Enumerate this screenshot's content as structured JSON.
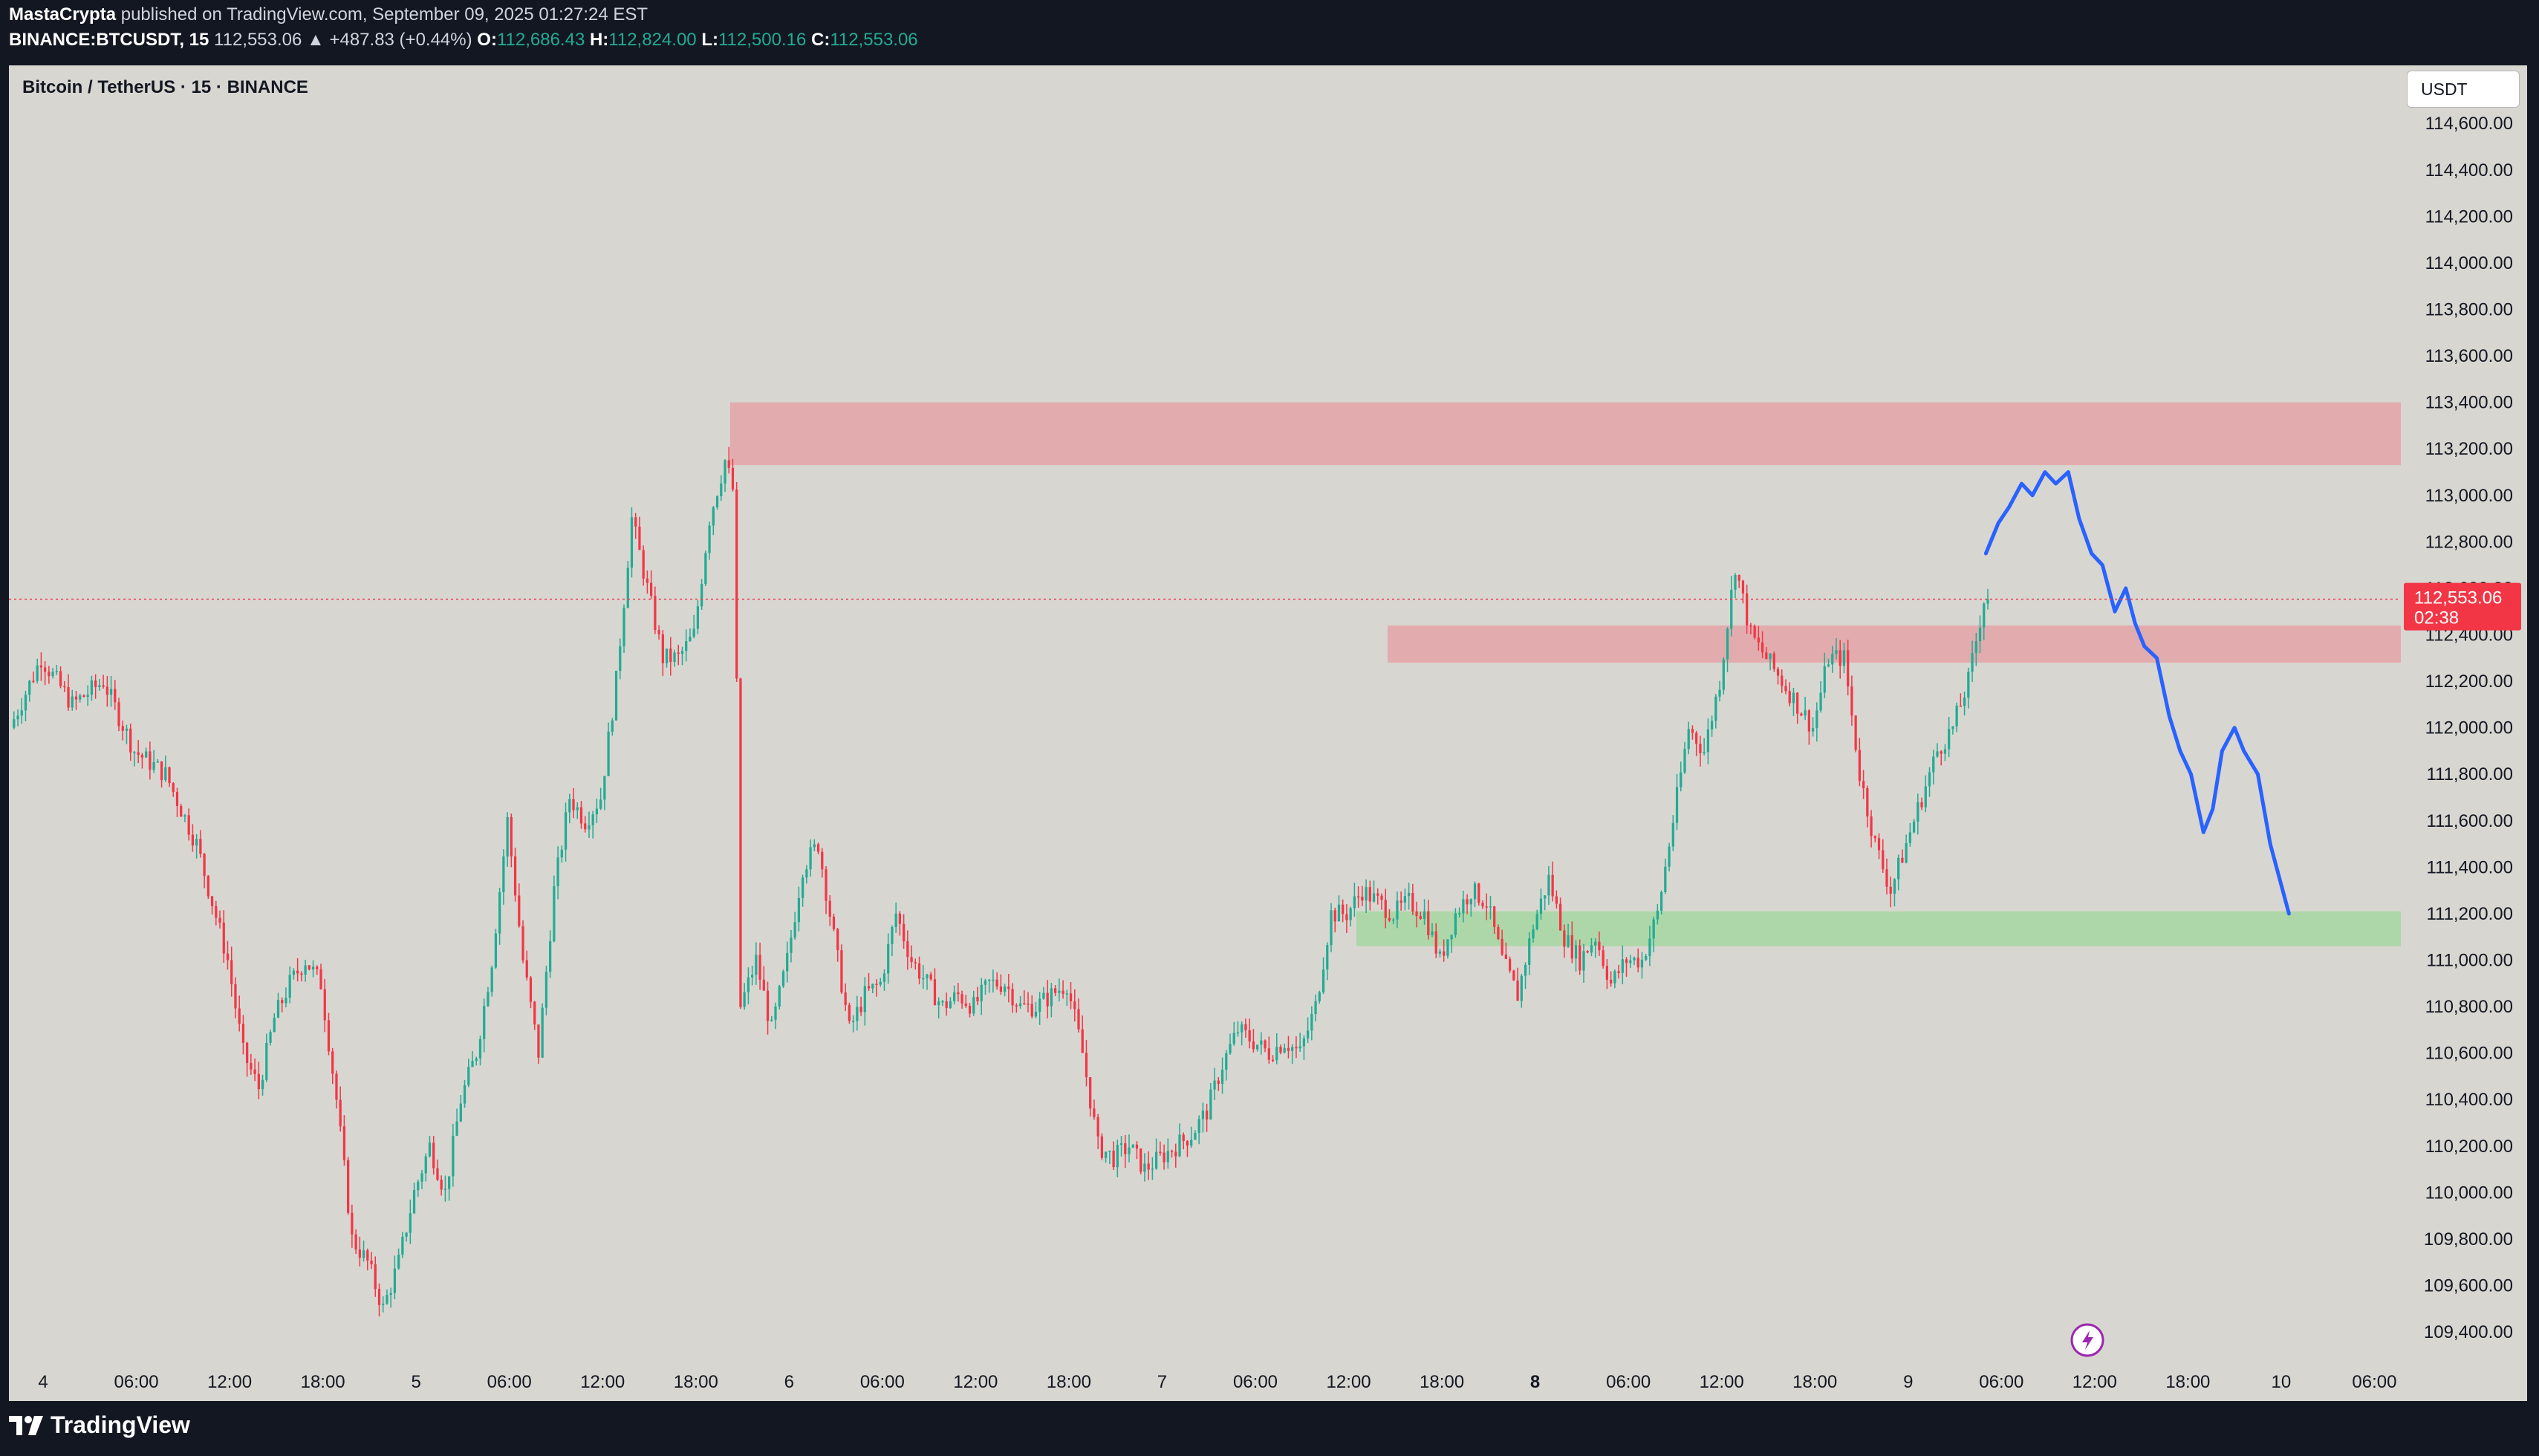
{
  "header": {
    "author": "MastaCrypta",
    "published_text": "published on TradingView.com, September 09, 2025 01:27:24 EST",
    "symbol": "BINANCE:BTCUSDT, 15",
    "last": "112,553.06",
    "change": "▲ +487.83 (+0.44%)",
    "o_label": "O:",
    "o_value": "112,686.43",
    "h_label": "H:",
    "h_value": "112,824.00",
    "l_label": "L:",
    "l_value": "112,500.16",
    "c_label": "C:",
    "c_value": "112,553.06"
  },
  "chart_title": "Bitcoin / TetherUS · 15 · BINANCE",
  "currency": "USDT",
  "price_tag": {
    "price": "112,553.06",
    "countdown": "02:38"
  },
  "footer": {
    "brand": "TradingView"
  },
  "colors": {
    "background": "#d8d6d1",
    "up": "#22ab94",
    "down": "#f23645",
    "resistance_zone": "#e3a7aa",
    "support_zone": "#a9d7a3",
    "projection": "#2962ff"
  },
  "chart_data": {
    "type": "candlestick",
    "title": "Bitcoin / TetherUS · 15 · BINANCE",
    "ylim": [
      109250,
      114850
    ],
    "ytick_labels": [
      "109,400.00",
      "109,600.00",
      "109,800.00",
      "110,000.00",
      "110,200.00",
      "110,400.00",
      "110,600.00",
      "110,800.00",
      "111,000.00",
      "111,200.00",
      "111,400.00",
      "111,600.00",
      "111,800.00",
      "112,000.00",
      "112,200.00",
      "112,400.00",
      "112,600.00",
      "112,800.00",
      "113,000.00",
      "113,200.00",
      "113,400.00",
      "113,600.00",
      "113,800.00",
      "114,000.00",
      "114,200.00",
      "114,400.00",
      "114,600.00"
    ],
    "ytick_values": [
      109400,
      109600,
      109800,
      110000,
      110200,
      110400,
      110600,
      110800,
      111000,
      111200,
      111400,
      111600,
      111800,
      112000,
      112200,
      112400,
      112600,
      112800,
      113000,
      113200,
      113400,
      113600,
      113800,
      114000,
      114200,
      114400,
      114600
    ],
    "xtick_labels": [
      "4",
      "06:00",
      "12:00",
      "18:00",
      "5",
      "06:00",
      "12:00",
      "18:00",
      "6",
      "06:00",
      "12:00",
      "18:00",
      "7",
      "06:00",
      "12:00",
      "18:00",
      "8",
      "06:00",
      "12:00",
      "18:00",
      "9",
      "06:00",
      "12:00",
      "18:00",
      "10",
      "06:00"
    ],
    "xtick_hours": [
      0,
      6,
      12,
      18,
      24,
      30,
      36,
      42,
      48,
      54,
      60,
      66,
      72,
      78,
      84,
      90,
      96,
      102,
      108,
      114,
      120,
      126,
      132,
      138,
      144,
      150
    ],
    "x_unit": "hours since Sep 4 00:00",
    "x_range_hours": [
      -2.2,
      151.7
    ],
    "last_price": 112553.06,
    "price_path": [
      [
        -2.0,
        112000
      ],
      [
        0,
        112300
      ],
      [
        2,
        112100
      ],
      [
        4,
        112200
      ],
      [
        6,
        111900
      ],
      [
        8,
        111800
      ],
      [
        10,
        111500
      ],
      [
        12,
        111000
      ],
      [
        13,
        110600
      ],
      [
        14,
        110450
      ],
      [
        15,
        110750
      ],
      [
        16,
        110900
      ],
      [
        17,
        111000
      ],
      [
        18,
        110900
      ],
      [
        19,
        110400
      ],
      [
        20,
        109800
      ],
      [
        21,
        109700
      ],
      [
        22,
        109500
      ],
      [
        23,
        109700
      ],
      [
        24,
        110000
      ],
      [
        25,
        110200
      ],
      [
        26,
        110000
      ],
      [
        27,
        110400
      ],
      [
        28,
        110600
      ],
      [
        29,
        111000
      ],
      [
        30,
        111600
      ],
      [
        31,
        111000
      ],
      [
        32,
        110600
      ],
      [
        33,
        111300
      ],
      [
        34,
        111700
      ],
      [
        35,
        111600
      ],
      [
        36,
        111700
      ],
      [
        37,
        112200
      ],
      [
        38,
        112900
      ],
      [
        39,
        112600
      ],
      [
        40,
        112300
      ],
      [
        41,
        112300
      ],
      [
        42,
        112400
      ],
      [
        43,
        112900
      ],
      [
        44,
        113150
      ],
      [
        44.6,
        113000
      ],
      [
        45,
        110800
      ],
      [
        46,
        111000
      ],
      [
        47,
        110700
      ],
      [
        48,
        111000
      ],
      [
        49,
        111400
      ],
      [
        50,
        111500
      ],
      [
        51,
        111100
      ],
      [
        52,
        110700
      ],
      [
        53,
        110850
      ],
      [
        54,
        110900
      ],
      [
        55,
        111200
      ],
      [
        56,
        111000
      ],
      [
        57,
        110900
      ],
      [
        58,
        110800
      ],
      [
        59,
        110850
      ],
      [
        60,
        110800
      ],
      [
        61,
        110900
      ],
      [
        62,
        110900
      ],
      [
        63,
        110800
      ],
      [
        64,
        110800
      ],
      [
        65,
        110850
      ],
      [
        66,
        110900
      ],
      [
        67,
        110600
      ],
      [
        68,
        110200
      ],
      [
        69,
        110150
      ],
      [
        70,
        110200
      ],
      [
        71,
        110100
      ],
      [
        72,
        110150
      ],
      [
        73,
        110200
      ],
      [
        74,
        110250
      ],
      [
        75,
        110350
      ],
      [
        76,
        110550
      ],
      [
        77,
        110700
      ],
      [
        78,
        110650
      ],
      [
        79,
        110600
      ],
      [
        80,
        110650
      ],
      [
        81,
        110600
      ],
      [
        82,
        110800
      ],
      [
        83,
        111200
      ],
      [
        84,
        111200
      ],
      [
        85,
        111300
      ],
      [
        86,
        111250
      ],
      [
        87,
        111200
      ],
      [
        88,
        111250
      ],
      [
        89,
        111200
      ],
      [
        90,
        111000
      ],
      [
        91,
        111200
      ],
      [
        92,
        111300
      ],
      [
        93,
        111250
      ],
      [
        94,
        111000
      ],
      [
        95,
        110850
      ],
      [
        96,
        111150
      ],
      [
        97,
        111350
      ],
      [
        98,
        111100
      ],
      [
        99,
        111000
      ],
      [
        100,
        111100
      ],
      [
        101,
        110900
      ],
      [
        102,
        111000
      ],
      [
        103,
        111000
      ],
      [
        104,
        111200
      ],
      [
        105,
        111600
      ],
      [
        106,
        112000
      ],
      [
        107,
        111900
      ],
      [
        108,
        112200
      ],
      [
        109,
        112700
      ],
      [
        110,
        112400
      ],
      [
        111,
        112300
      ],
      [
        112,
        112200
      ],
      [
        113,
        112100
      ],
      [
        114,
        112000
      ],
      [
        115,
        112300
      ],
      [
        116,
        112300
      ],
      [
        117,
        111800
      ],
      [
        118,
        111500
      ],
      [
        119,
        111300
      ],
      [
        120,
        111500
      ],
      [
        121,
        111700
      ],
      [
        122,
        111900
      ],
      [
        123,
        112000
      ],
      [
        124,
        112200
      ],
      [
        125,
        112553
      ]
    ],
    "projection_path": [
      [
        125,
        112750
      ],
      [
        125.8,
        112880
      ],
      [
        126.5,
        112950
      ],
      [
        127.3,
        113050
      ],
      [
        128,
        113000
      ],
      [
        128.8,
        113100
      ],
      [
        129.5,
        113050
      ],
      [
        130.3,
        113100
      ],
      [
        131,
        112900
      ],
      [
        131.8,
        112750
      ],
      [
        132.5,
        112700
      ],
      [
        133.3,
        112500
      ],
      [
        134,
        112600
      ],
      [
        134.6,
        112450
      ],
      [
        135.2,
        112350
      ],
      [
        136,
        112300
      ],
      [
        136.8,
        112050
      ],
      [
        137.5,
        111900
      ],
      [
        138.2,
        111800
      ],
      [
        139,
        111550
      ],
      [
        139.6,
        111650
      ],
      [
        140.2,
        111900
      ],
      [
        141,
        112000
      ],
      [
        141.6,
        111900
      ],
      [
        142.5,
        111800
      ],
      [
        143.3,
        111500
      ],
      [
        144.5,
        111200
      ]
    ],
    "zones": [
      {
        "kind": "resistance",
        "start_hour": 44.2,
        "end_hour": null,
        "low": 113130,
        "high": 113400
      },
      {
        "kind": "resistance",
        "start_hour": 86.5,
        "end_hour": null,
        "low": 112280,
        "high": 112440
      },
      {
        "kind": "support",
        "start_hour": 84.5,
        "end_hour": null,
        "low": 111060,
        "high": 111210
      }
    ],
    "last_price_line": true,
    "grid": false
  }
}
